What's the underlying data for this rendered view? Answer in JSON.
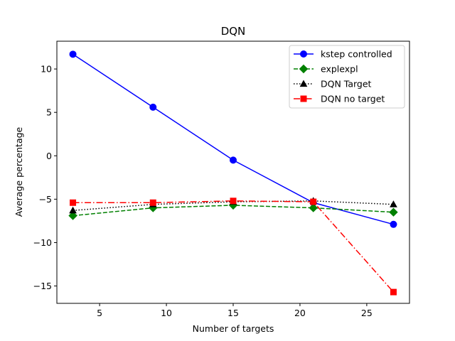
{
  "chart_data": {
    "type": "line",
    "title": "DQN",
    "xlabel": "Number of targets",
    "ylabel": "Average percentage",
    "x": [
      3,
      9,
      15,
      21,
      27
    ],
    "xlim": [
      1.8,
      28.2
    ],
    "ylim": [
      -17,
      13.2
    ],
    "xticks": [
      5,
      10,
      15,
      20,
      25
    ],
    "yticks": [
      10,
      5,
      0,
      -5,
      -10,
      -15
    ],
    "ytick_labels": [
      "10",
      "5",
      "0",
      "−5",
      "−10",
      "−15"
    ],
    "grid": false,
    "legend_position": "top-right",
    "series": [
      {
        "name": "kstep controlled",
        "values": [
          11.7,
          5.6,
          -0.5,
          -5.4,
          -7.9
        ],
        "color": "#0000ff",
        "linestyle": "solid",
        "marker": "circle"
      },
      {
        "name": "explexpl",
        "values": [
          -6.9,
          -6.0,
          -5.7,
          -6.0,
          -6.5
        ],
        "color": "#008000",
        "linestyle": "dashed",
        "marker": "diamond"
      },
      {
        "name": "DQN Target",
        "values": [
          -6.3,
          -5.6,
          -5.3,
          -5.2,
          -5.6
        ],
        "color": "#000000",
        "linestyle": "dotted",
        "marker": "triangle"
      },
      {
        "name": "DQN no target",
        "values": [
          -5.4,
          -5.4,
          -5.2,
          -5.3,
          -15.7
        ],
        "color": "#ff0000",
        "linestyle": "dashdot",
        "marker": "square"
      }
    ]
  }
}
